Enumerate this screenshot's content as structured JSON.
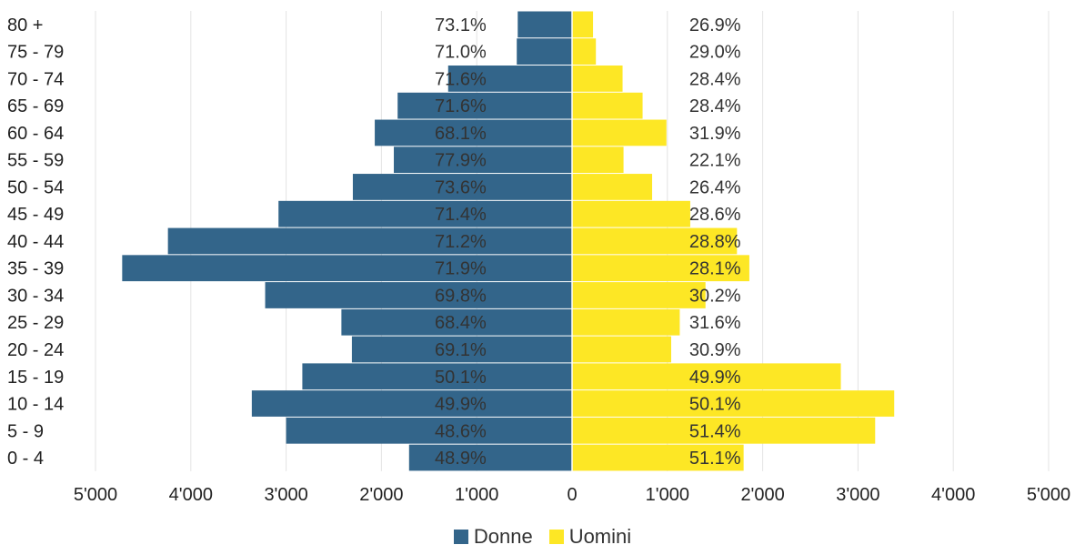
{
  "chart_data": {
    "type": "bar",
    "orientation": "horizontal-diverging",
    "categories": [
      "80 +",
      "75 - 79",
      "70 - 74",
      "65 - 69",
      "60 - 64",
      "55 - 59",
      "50 - 54",
      "45 - 49",
      "40 - 44",
      "35 - 39",
      "30 - 34",
      "25 - 29",
      "20 - 24",
      "15 - 19",
      "10 - 14",
      "5 - 9",
      "0 - 4"
    ],
    "series": [
      {
        "name": "Donne",
        "color": "#33658A",
        "values": [
          570,
          580,
          1300,
          1830,
          2070,
          1870,
          2300,
          3080,
          4240,
          4720,
          3220,
          2420,
          2310,
          2830,
          3360,
          3000,
          1710
        ],
        "labels": [
          "73.1%",
          "71.0%",
          "71.6%",
          "71.6%",
          "68.1%",
          "77.9%",
          "73.6%",
          "71.4%",
          "71.2%",
          "71.9%",
          "69.8%",
          "68.4%",
          "69.1%",
          "50.1%",
          "49.9%",
          "48.6%",
          "48.9%"
        ]
      },
      {
        "name": "Uomini",
        "color": "#FDE725",
        "values": [
          220,
          250,
          530,
          740,
          990,
          540,
          840,
          1240,
          1730,
          1860,
          1400,
          1130,
          1040,
          2820,
          3380,
          3180,
          1800
        ],
        "labels": [
          "26.9%",
          "29.0%",
          "28.4%",
          "28.4%",
          "31.9%",
          "22.1%",
          "26.4%",
          "28.6%",
          "28.8%",
          "28.1%",
          "30.2%",
          "31.6%",
          "30.9%",
          "49.9%",
          "50.1%",
          "51.4%",
          "51.1%"
        ]
      }
    ],
    "xlim": [
      -5000,
      5000
    ],
    "xticks": [
      -5000,
      -4000,
      -3000,
      -2000,
      -1000,
      0,
      1000,
      2000,
      3000,
      4000,
      5000
    ],
    "xtick_labels": [
      "5'000",
      "4'000",
      "3'000",
      "2'000",
      "1'000",
      "0",
      "1'000",
      "2'000",
      "3'000",
      "4'000",
      "5'000"
    ],
    "grid": true,
    "legend_position": "bottom"
  }
}
